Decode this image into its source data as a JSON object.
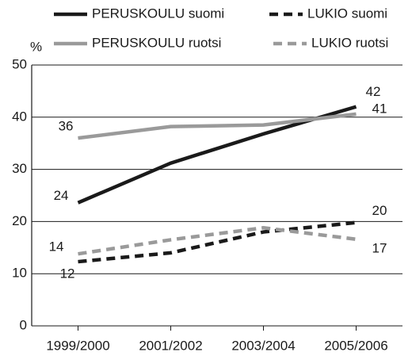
{
  "chart_data": {
    "type": "line",
    "y_label": "%",
    "categories": [
      "1999/2000",
      "2001/2002",
      "2003/2004",
      "2005/2006"
    ],
    "series": [
      {
        "name": "PERUSKOULU suomi",
        "color": "#1a1a1a",
        "dashed": false,
        "values": [
          23.6,
          31.2,
          36.8,
          42
        ],
        "value_labels": [
          "24",
          null,
          null,
          "42"
        ]
      },
      {
        "name": "LUKIO suomi",
        "color": "#1a1a1a",
        "dashed": true,
        "values": [
          12.3,
          14,
          18,
          19.8
        ],
        "value_labels": [
          "12",
          null,
          null,
          "20"
        ]
      },
      {
        "name": "PERUSKOULU ruotsi",
        "color": "#9a9a9a",
        "dashed": false,
        "values": [
          36,
          38.2,
          38.5,
          40.6
        ],
        "value_labels": [
          "36",
          null,
          null,
          "41"
        ]
      },
      {
        "name": "LUKIO ruotsi",
        "color": "#9a9a9a",
        "dashed": true,
        "values": [
          13.8,
          16.5,
          18.8,
          16.6
        ],
        "value_labels": [
          "14",
          null,
          null,
          "17"
        ]
      }
    ],
    "ylim": [
      0,
      50
    ],
    "yticks": [
      0,
      10,
      20,
      30,
      40,
      50
    ],
    "grid": true
  }
}
